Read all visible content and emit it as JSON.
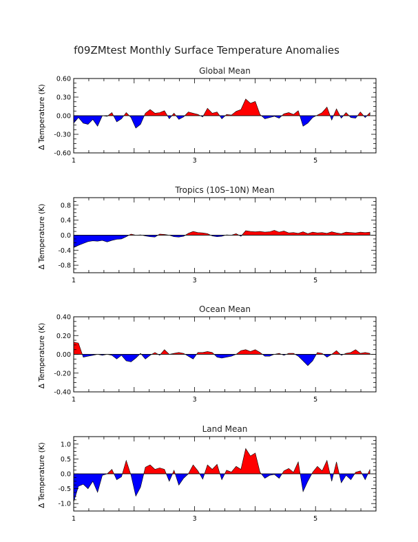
{
  "figure_title": "f09ZMtest Monthly Surface Temperature Anomalies",
  "colors": {
    "positive": "#ff0000",
    "negative": "#0000ff",
    "axis": "#000000"
  },
  "chart_data": [
    {
      "type": "area",
      "title": "Global Mean",
      "ylabel": "Δ Temperature (K)",
      "xlim": [
        1,
        6
      ],
      "ylim": [
        -0.6,
        0.6
      ],
      "xticks": [
        1,
        3,
        5
      ],
      "xtick_labels": [
        "1",
        "3",
        "5"
      ],
      "yticks": [
        -0.6,
        -0.3,
        0.0,
        0.3,
        0.6
      ],
      "ytick_labels": [
        "-0.60",
        "-0.30",
        "0.00",
        "0.30",
        "0.60"
      ],
      "values": [
        -0.12,
        -0.03,
        -0.12,
        -0.14,
        -0.06,
        -0.17,
        0.0,
        -0.01,
        0.05,
        -0.1,
        -0.05,
        0.05,
        -0.03,
        -0.2,
        -0.14,
        0.04,
        0.1,
        0.04,
        0.05,
        0.08,
        -0.05,
        0.04,
        -0.06,
        -0.02,
        0.06,
        0.04,
        0.02,
        -0.02,
        0.12,
        0.04,
        0.06,
        -0.05,
        0.02,
        0.01,
        0.07,
        0.1,
        0.27,
        0.2,
        0.23,
        0.02,
        -0.05,
        -0.03,
        -0.01,
        -0.04,
        0.03,
        0.05,
        0.02,
        0.08,
        -0.17,
        -0.12,
        -0.03,
        0.01,
        0.05,
        0.14,
        -0.07,
        0.11,
        -0.04,
        0.05,
        -0.03,
        -0.04,
        0.06,
        -0.03,
        0.05
      ]
    },
    {
      "type": "area",
      "title": "Tropics (10S–10N) Mean",
      "ylabel": "Δ Temperature (K)",
      "xlim": [
        1,
        6
      ],
      "ylim": [
        -1.0,
        1.0
      ],
      "xticks": [
        1,
        3,
        5
      ],
      "xtick_labels": [
        "1",
        "3",
        "5"
      ],
      "yticks": [
        -0.8,
        -0.4,
        0.0,
        0.4,
        0.8
      ],
      "ytick_labels": [
        "-0.8",
        "-0.4",
        "0.0",
        "0.4",
        "0.8"
      ],
      "values": [
        -0.33,
        -0.27,
        -0.22,
        -0.17,
        -0.15,
        -0.16,
        -0.14,
        -0.18,
        -0.14,
        -0.11,
        -0.1,
        -0.04,
        0.03,
        0.0,
        0.01,
        -0.02,
        -0.04,
        -0.05,
        0.03,
        0.02,
        0.0,
        -0.04,
        -0.05,
        -0.03,
        0.05,
        0.1,
        0.07,
        0.06,
        0.04,
        -0.02,
        -0.04,
        -0.03,
        0.01,
        0.0,
        0.04,
        -0.03,
        0.12,
        0.1,
        0.09,
        0.1,
        0.08,
        0.09,
        0.13,
        0.08,
        0.11,
        0.06,
        0.07,
        0.05,
        0.09,
        0.04,
        0.08,
        0.06,
        0.07,
        0.05,
        0.09,
        0.06,
        0.04,
        0.08,
        0.07,
        0.06,
        0.08,
        0.07,
        0.08
      ]
    },
    {
      "type": "area",
      "title": "Ocean Mean",
      "ylabel": "Δ Temperature (K)",
      "xlim": [
        1,
        6
      ],
      "ylim": [
        -0.4,
        0.4
      ],
      "xticks": [
        1,
        3,
        5
      ],
      "xtick_labels": [
        "1",
        "3",
        "5"
      ],
      "yticks": [
        -0.4,
        -0.2,
        0.0,
        0.2,
        0.4
      ],
      "ytick_labels": [
        "-0.40",
        "-0.20",
        "0.00",
        "0.20",
        "0.40"
      ],
      "values": [
        0.13,
        0.12,
        -0.03,
        -0.02,
        -0.01,
        0.0,
        -0.01,
        0.0,
        -0.01,
        -0.05,
        -0.01,
        -0.07,
        -0.08,
        -0.04,
        0.01,
        -0.05,
        -0.01,
        0.02,
        -0.01,
        0.05,
        0.0,
        0.01,
        0.02,
        0.01,
        -0.02,
        -0.05,
        0.02,
        0.02,
        0.03,
        0.02,
        -0.03,
        -0.04,
        -0.03,
        -0.02,
        0.0,
        0.04,
        0.05,
        0.03,
        0.05,
        0.02,
        -0.02,
        -0.02,
        0.0,
        0.01,
        -0.01,
        0.01,
        0.01,
        -0.02,
        -0.07,
        -0.12,
        -0.07,
        0.02,
        0.01,
        -0.03,
        0.0,
        0.04,
        -0.01,
        0.01,
        0.02,
        0.05,
        0.01,
        0.02,
        0.01
      ]
    },
    {
      "type": "area",
      "title": "Land Mean",
      "ylabel": "Δ Temperature (K)",
      "xlim": [
        1,
        6
      ],
      "ylim": [
        -1.25,
        1.25
      ],
      "xticks": [
        1,
        3,
        5
      ],
      "xtick_labels": [
        "1",
        "3",
        "5"
      ],
      "yticks": [
        -1.0,
        -0.5,
        0.0,
        0.5,
        1.0
      ],
      "ytick_labels": [
        "-1.0",
        "-0.5",
        "0.0",
        "0.5",
        "1.0"
      ],
      "values": [
        -0.95,
        -0.42,
        -0.35,
        -0.5,
        -0.25,
        -0.62,
        -0.05,
        0.0,
        0.15,
        -0.2,
        -0.1,
        0.45,
        -0.05,
        -0.75,
        -0.45,
        0.22,
        0.3,
        0.15,
        0.2,
        0.15,
        -0.25,
        0.12,
        -0.38,
        -0.15,
        0.0,
        0.3,
        0.1,
        -0.18,
        0.3,
        0.15,
        0.32,
        -0.2,
        0.12,
        0.06,
        0.25,
        0.15,
        0.85,
        0.6,
        0.7,
        0.05,
        -0.15,
        -0.05,
        -0.02,
        -0.15,
        0.1,
        0.18,
        0.05,
        0.4,
        -0.6,
        -0.25,
        0.05,
        0.25,
        0.1,
        0.45,
        -0.25,
        0.4,
        -0.3,
        -0.05,
        -0.2,
        0.05,
        0.1,
        -0.2,
        0.15
      ]
    }
  ]
}
